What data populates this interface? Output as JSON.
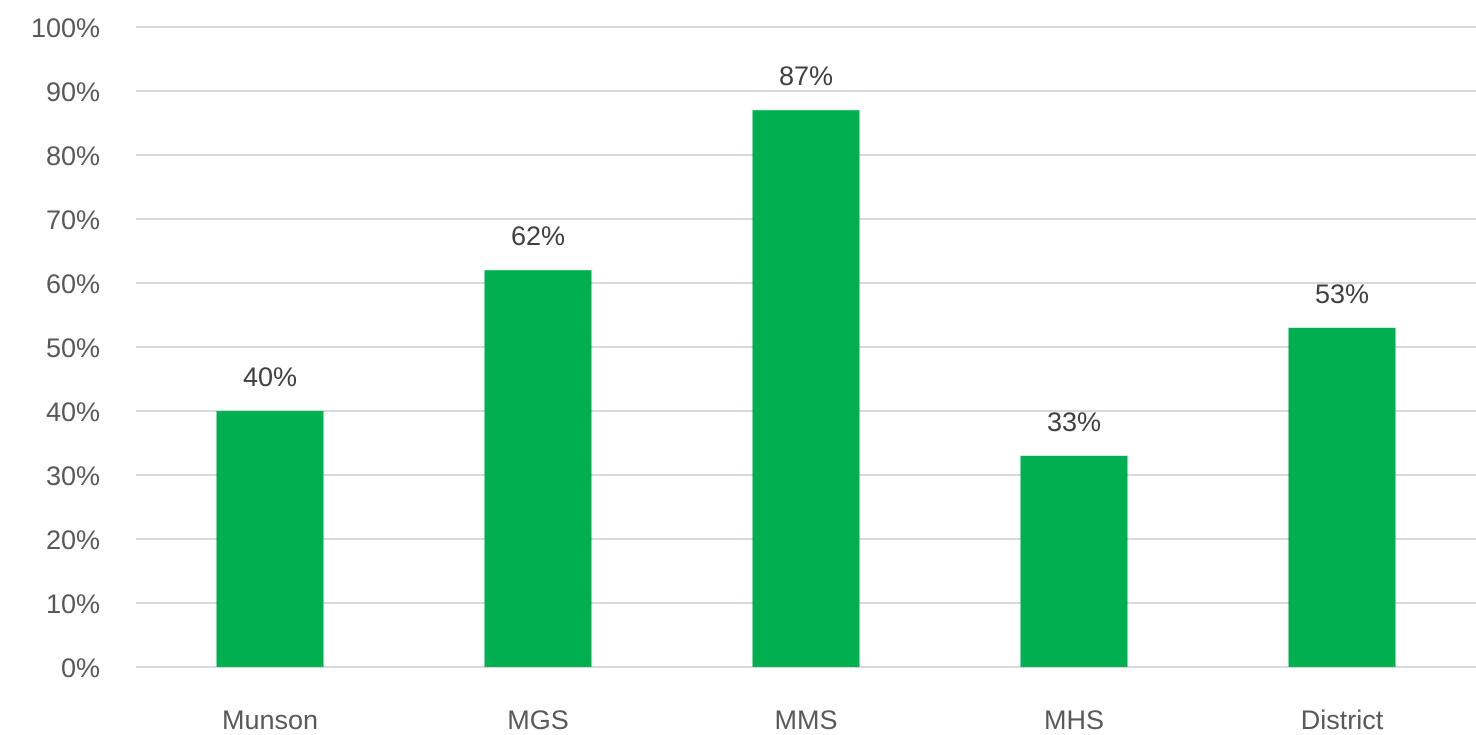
{
  "chart_data": {
    "type": "bar",
    "categories": [
      "Munson",
      "MGS",
      "MMS",
      "MHS",
      "District"
    ],
    "values": [
      40,
      62,
      87,
      33,
      53
    ],
    "value_labels": [
      "40%",
      "62%",
      "87%",
      "33%",
      "53%"
    ],
    "ylim": [
      0,
      100
    ],
    "y_ticks": [
      0,
      10,
      20,
      30,
      40,
      50,
      60,
      70,
      80,
      90,
      100
    ],
    "y_tick_labels": [
      "0%",
      "10%",
      "20%",
      "30%",
      "40%",
      "50%",
      "60%",
      "70%",
      "80%",
      "90%",
      "100%"
    ],
    "grid": true,
    "legend": "none",
    "colors": {
      "bar": "#00b050",
      "grid": "#d9d9d9",
      "axis_text": "#595959",
      "data_label": "#404040"
    }
  }
}
